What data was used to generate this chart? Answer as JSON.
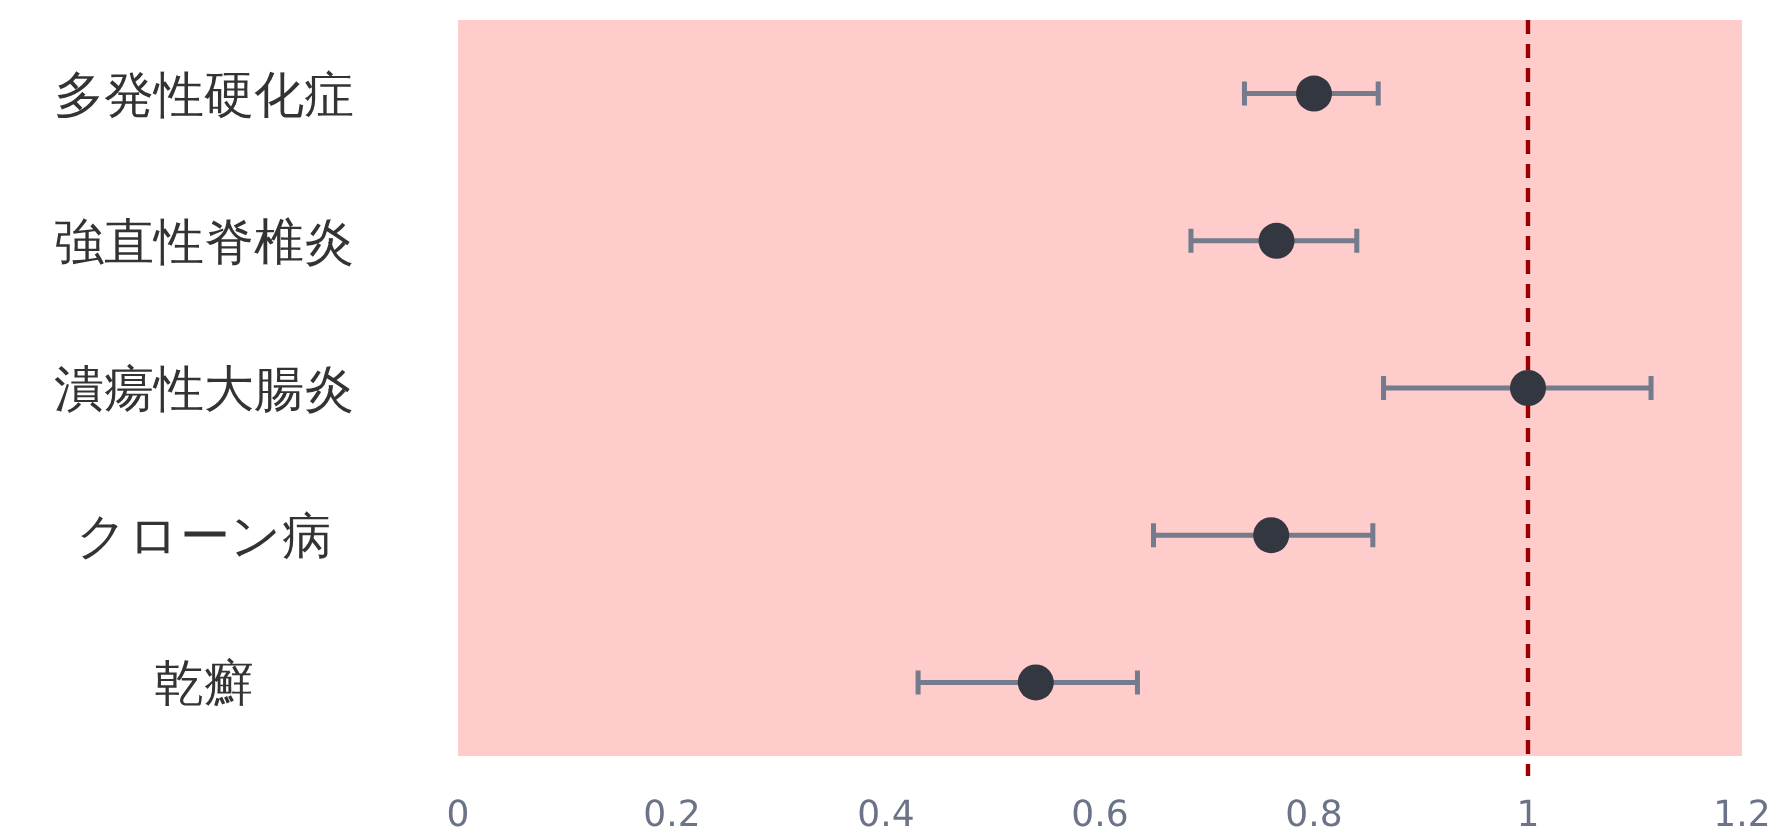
{
  "chart_data": {
    "type": "scatter",
    "orientation": "horizontal",
    "marker": "circle",
    "categories": [
      "多発性硬化症",
      "強直性脊椎炎",
      "潰瘍性大腸炎",
      "クローン病",
      "乾癬"
    ],
    "values": [
      0.8,
      0.765,
      1.0,
      0.76,
      0.54
    ],
    "errors": [
      [
        0.735,
        0.86
      ],
      [
        0.685,
        0.84
      ],
      [
        0.865,
        1.115
      ],
      [
        0.65,
        0.855
      ],
      [
        0.43,
        0.635
      ]
    ],
    "color": "#333740",
    "xlim": [
      0,
      1.2
    ],
    "xticks": [
      0,
      0.2,
      0.4,
      0.6,
      0.8,
      1,
      1.2
    ],
    "ref_lines": [
      {
        "axis": "x",
        "value": 1,
        "color": "#990000",
        "line_style": "dashed"
      }
    ]
  }
}
